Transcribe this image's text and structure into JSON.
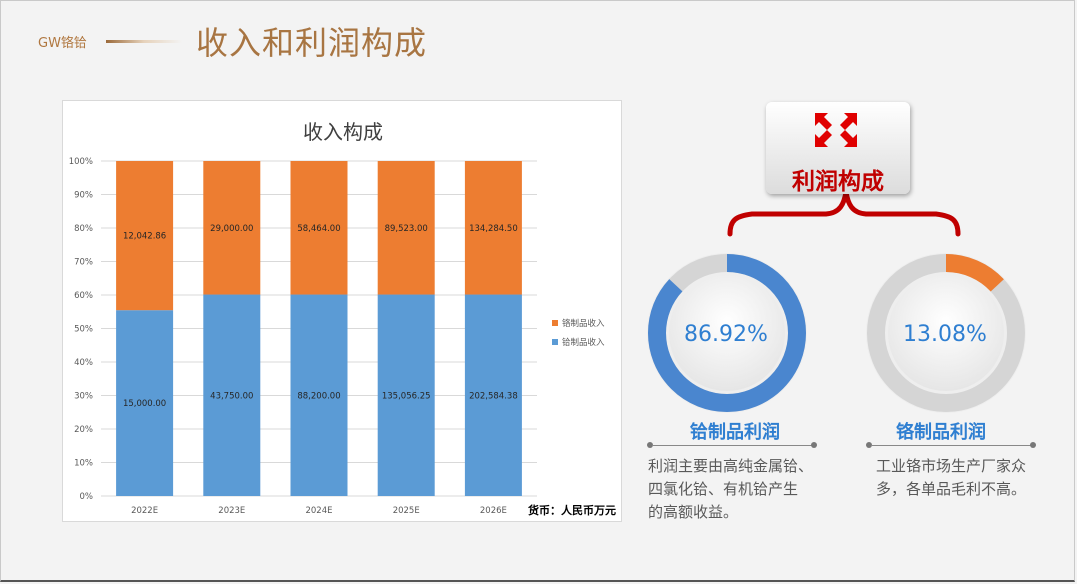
{
  "header": {
    "brand": "GW铬铪",
    "title": "收入和利润构成"
  },
  "chart_data": {
    "type": "bar",
    "stacked": "percent",
    "title": "收入构成",
    "categories": [
      "2022E",
      "2023E",
      "2024E",
      "2025E",
      "2026E"
    ],
    "series": [
      {
        "name": "铪制品收入",
        "color": "#5b9bd5",
        "values": [
          15000.0,
          43750.0,
          88200.0,
          135056.25,
          202584.38
        ],
        "labels": [
          "15,000.00",
          "43,750.00",
          "88,200.00",
          "135,056.25",
          "202,584.38"
        ]
      },
      {
        "name": "铬制品收入",
        "color": "#ed7d31",
        "values": [
          12042.86,
          29000.0,
          58464.0,
          89523.0,
          134284.5
        ],
        "labels": [
          "12,042.86",
          "29,000.00",
          "58,464.00",
          "89,523.00",
          "134,284.50"
        ]
      }
    ],
    "yticks": [
      "0%",
      "10%",
      "20%",
      "30%",
      "40%",
      "50%",
      "60%",
      "70%",
      "80%",
      "90%",
      "100%"
    ],
    "ylim": [
      0,
      100
    ],
    "legend": "right",
    "grid": true,
    "note": "货币：人民币万元"
  },
  "profit": {
    "badge": "利润构成",
    "items": [
      {
        "pct_text": "86.92%",
        "pct": 86.92,
        "label": "铪制品利润",
        "desc": [
          "利润主要由高纯金属铪、",
          "四氯化铪、有机铪产生",
          "的高额收益。"
        ],
        "color": "#4a86cf"
      },
      {
        "pct_text": "13.08%",
        "pct": 13.08,
        "label": "铬制品利润",
        "desc": [
          "工业铬市场生产厂家众",
          "多，各单品毛利不高。"
        ],
        "color": "#ed7d31"
      }
    ]
  }
}
